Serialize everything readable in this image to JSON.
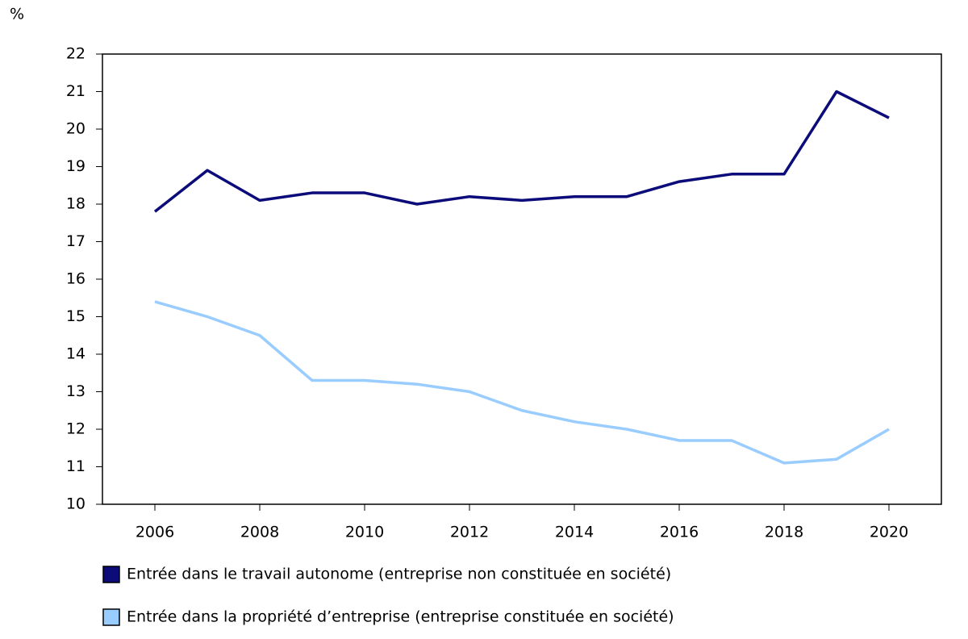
{
  "chart_data": {
    "type": "line",
    "y_label": "%",
    "x": [
      2006,
      2007,
      2008,
      2009,
      2010,
      2011,
      2012,
      2013,
      2014,
      2015,
      2016,
      2017,
      2018,
      2019,
      2020
    ],
    "series": [
      {
        "name": "Entrée dans le travail autonome (entreprise non constituée en société)",
        "color": "#0b0b7a",
        "values": [
          17.8,
          18.9,
          18.1,
          18.3,
          18.3,
          18.0,
          18.2,
          18.1,
          18.2,
          18.2,
          18.6,
          18.8,
          18.8,
          21.0,
          20.3
        ]
      },
      {
        "name": "Entrée dans la propriété d’entreprise (entreprise constituée en société)",
        "color": "#99ccff",
        "values": [
          15.4,
          15.0,
          14.5,
          13.3,
          13.3,
          13.2,
          13.0,
          12.5,
          12.2,
          12.0,
          11.7,
          11.7,
          11.1,
          11.2,
          12.0
        ]
      }
    ],
    "xlim": [
      2005,
      2021
    ],
    "xticks": [
      2006,
      2008,
      2010,
      2012,
      2014,
      2016,
      2018,
      2020
    ],
    "ylim": [
      10,
      22
    ],
    "yticks": [
      10,
      11,
      12,
      13,
      14,
      15,
      16,
      17,
      18,
      19,
      20,
      21,
      22
    ],
    "legend": "bottom"
  }
}
